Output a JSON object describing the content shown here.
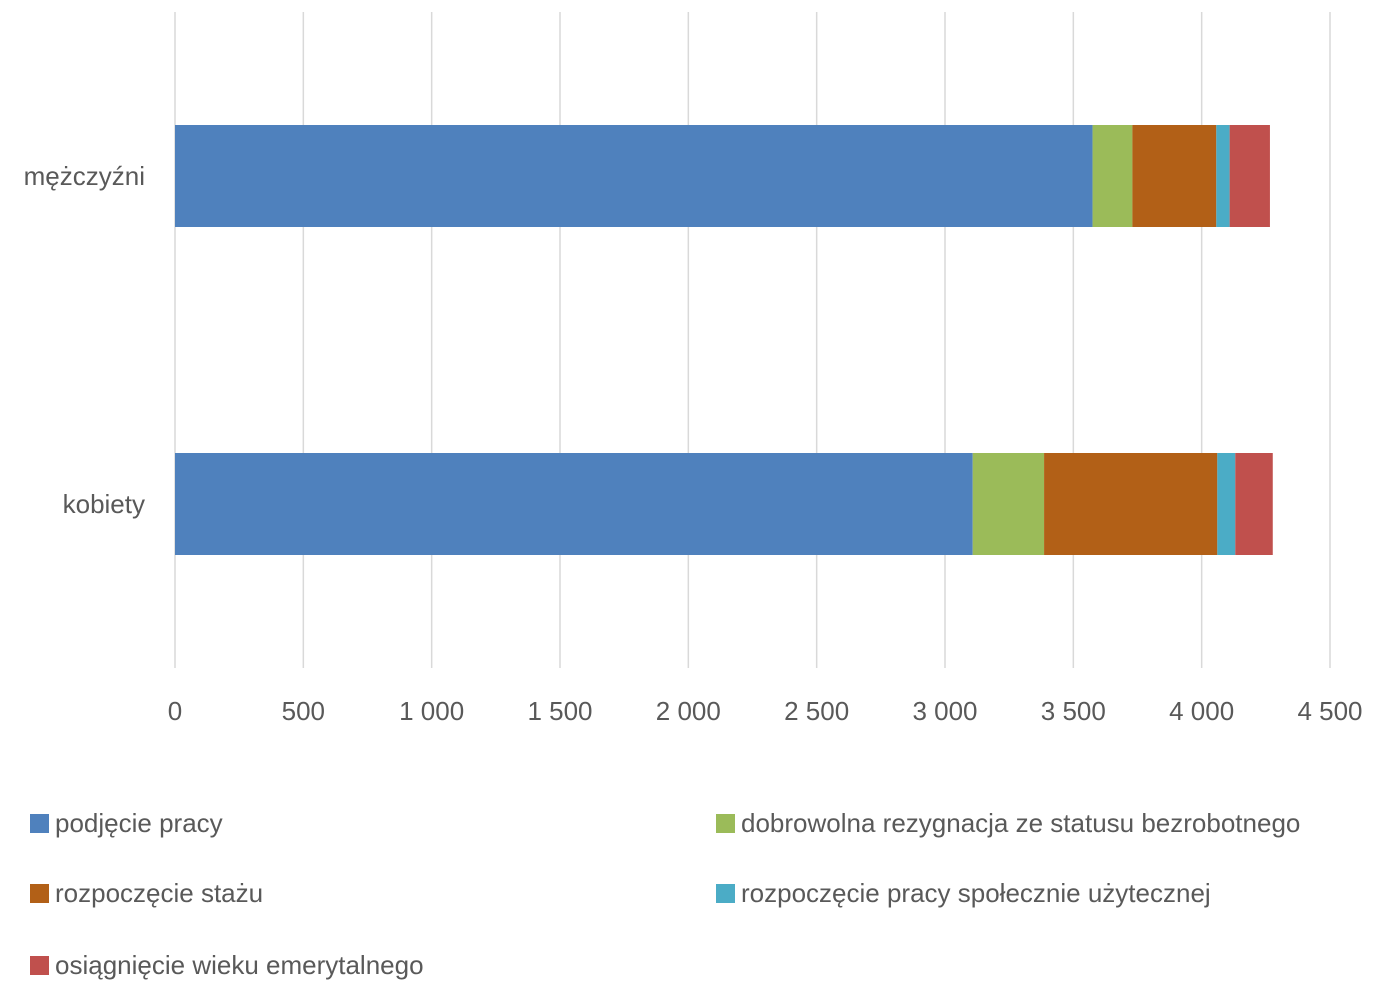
{
  "chart_data": {
    "type": "bar",
    "orientation": "horizontal",
    "stacked": true,
    "categories": [
      "mężczyźni",
      "kobiety"
    ],
    "series": [
      {
        "name": "podjęcie pracy",
        "color": "#4F81BD",
        "values": [
          3575,
          3108
        ]
      },
      {
        "name": "dobrowolna rezygnacja ze statusu bezrobotnego",
        "color": "#9BBB59",
        "values": [
          155,
          278
        ]
      },
      {
        "name": "rozpoczęcie stażu",
        "color": "#B26017",
        "values": [
          327,
          675
        ]
      },
      {
        "name": "rozpoczęcie pracy społecznie użytecznej",
        "color": "#4BACC6",
        "values": [
          52,
          70
        ]
      },
      {
        "name": "osiągnięcie wieku emerytalnego",
        "color": "#C0504D",
        "values": [
          157,
          146
        ]
      }
    ],
    "x_ticks": [
      "0",
      "500",
      "1 000",
      "1 500",
      "2 000",
      "2 500",
      "3 000",
      "3 500",
      "4 000",
      "4 500"
    ],
    "xlim": [
      0,
      4500
    ],
    "xlabel": "",
    "ylabel": "",
    "title": "",
    "grid": "vertical",
    "legend_position": "bottom"
  }
}
